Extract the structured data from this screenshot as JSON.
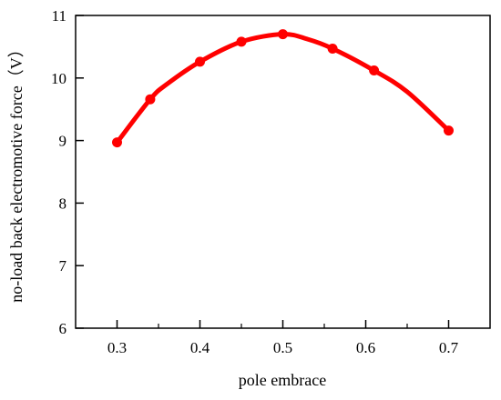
{
  "chart_data": {
    "type": "line",
    "title": "",
    "xlabel": "pole embrace",
    "ylabel": "no-load back electromotive force（V）",
    "xlim": [
      0.25,
      0.75
    ],
    "ylim": [
      6,
      11
    ],
    "x_ticks": [
      "0.3",
      "0.4",
      "0.5",
      "0.6",
      "0.7"
    ],
    "x_tick_values": [
      0.3,
      0.4,
      0.5,
      0.6,
      0.7
    ],
    "x_minor_tick_values": [
      0.35,
      0.45,
      0.55,
      0.65
    ],
    "y_ticks": [
      "6",
      "7",
      "8",
      "9",
      "10",
      "11"
    ],
    "y_tick_values": [
      6,
      7,
      8,
      9,
      10,
      11
    ],
    "grid": false,
    "legend": "none",
    "series": [
      {
        "color": "#ff0000",
        "x": [
          0.3,
          0.34,
          0.4,
          0.45,
          0.5,
          0.56,
          0.61,
          0.7
        ],
        "y": [
          8.97,
          9.66,
          10.26,
          10.58,
          10.7,
          10.47,
          10.12,
          9.16
        ],
        "line_x": [
          0.3,
          0.34,
          0.36,
          0.4,
          0.45,
          0.5,
          0.53,
          0.56,
          0.61,
          0.65,
          0.7
        ],
        "line_y": [
          8.97,
          9.66,
          9.9,
          10.26,
          10.58,
          10.7,
          10.62,
          10.47,
          10.12,
          9.78,
          9.16
        ]
      }
    ]
  }
}
